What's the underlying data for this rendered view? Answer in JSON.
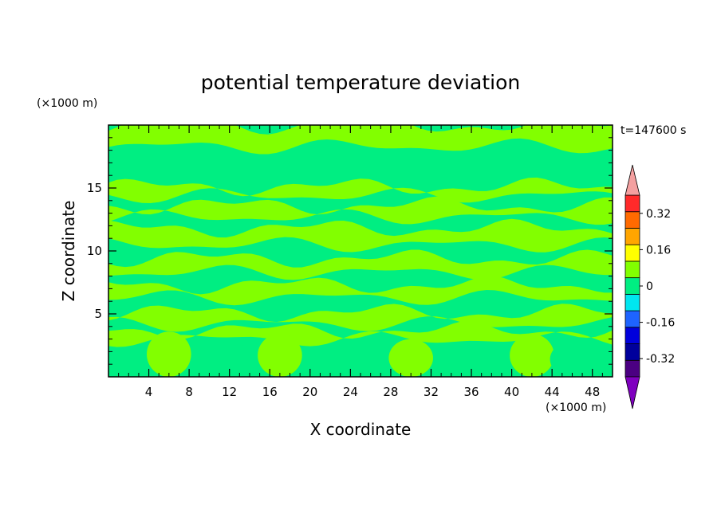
{
  "chart_data": {
    "type": "heatmap",
    "title": "potential temperature deviation",
    "xlabel": "X coordinate",
    "ylabel": "Z coordinate",
    "x_unit": "(×1000 m)",
    "y_unit": "(×1000 m)",
    "time_label": "t=147600 s",
    "xlim": [
      0,
      50
    ],
    "ylim": [
      0,
      20
    ],
    "xticks": [
      4,
      8,
      12,
      16,
      20,
      24,
      28,
      32,
      36,
      40,
      44,
      48
    ],
    "yticks": [
      5,
      10,
      15
    ],
    "colorbar": {
      "levels": [
        -0.4,
        -0.32,
        -0.24,
        -0.16,
        -0.08,
        0,
        0.08,
        0.16,
        0.24,
        0.32,
        0.4
      ],
      "colors": [
        "#4b0082",
        "#00009c",
        "#0000dc",
        "#1e64ff",
        "#00e6f0",
        "#00ee82",
        "#82ff00",
        "#ffff00",
        "#ffa500",
        "#ff6a00",
        "#ff2a2a"
      ],
      "under_color": "#7f00bf",
      "over_color": "#f4a0a0",
      "tick_labels": [
        "0.32",
        "0.16",
        "0",
        "-0.16",
        "-0.32"
      ],
      "tick_values": [
        0.32,
        0.16,
        0,
        -0.16,
        -0.32
      ]
    },
    "field_colors": {
      "positive": "#82ff00",
      "negative": "#00ee82"
    },
    "bands": [
      {
        "z": 0.6,
        "value": "neg"
      },
      {
        "z": 2.0,
        "value": "neg"
      },
      {
        "z": 3.0,
        "value": "pos"
      },
      {
        "z": 3.7,
        "value": "neg"
      },
      {
        "z": 4.2,
        "value": "pos"
      },
      {
        "z": 5.1,
        "value": "neg"
      },
      {
        "z": 6.3,
        "value": "pos"
      },
      {
        "z": 7.3,
        "value": "neg"
      },
      {
        "z": 8.3,
        "value": "pos"
      },
      {
        "z": 9.4,
        "value": "neg"
      },
      {
        "z": 10.5,
        "value": "pos"
      },
      {
        "z": 11.8,
        "value": "neg"
      },
      {
        "z": 12.7,
        "value": "pos"
      },
      {
        "z": 13.6,
        "value": "neg"
      },
      {
        "z": 14.4,
        "value": "pos"
      },
      {
        "z": 15.1,
        "value": "neg"
      },
      {
        "z": 15.8,
        "value": "neg"
      },
      {
        "z": 16.8,
        "value": "neg"
      },
      {
        "z": 18.3,
        "value": "pos"
      }
    ]
  }
}
